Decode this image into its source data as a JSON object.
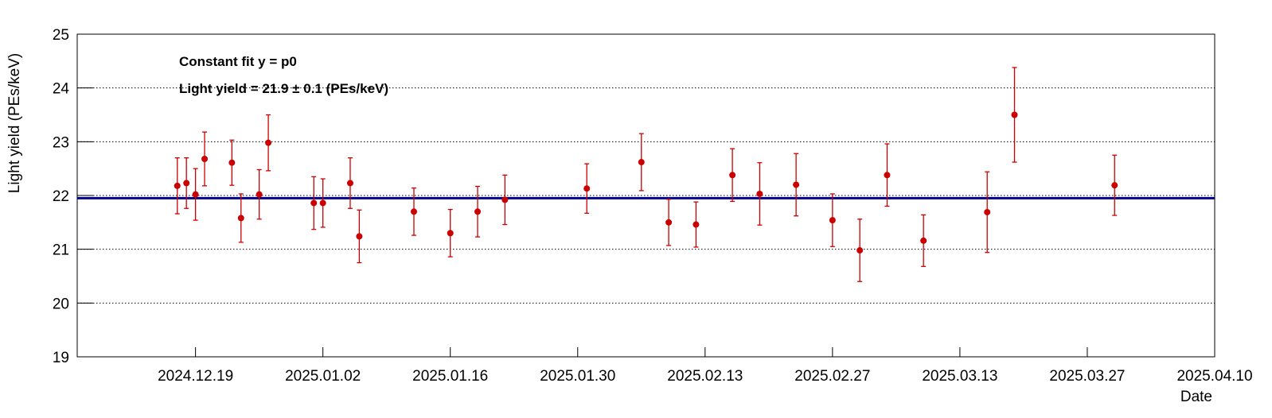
{
  "chart_data": {
    "type": "scatter",
    "annotations": [
      "Constant fit  y = p0",
      "Light yield = 21.9   ± 0.1  (PEs/keV)"
    ],
    "x_label": "Date",
    "y_label": "Light yield (PEs/keV)",
    "xlim": [
      "2024.12.06",
      "2025.04.10"
    ],
    "xticks": [
      "2024.12.19",
      "2025.01.02",
      "2025.01.16",
      "2025.01.30",
      "2025.02.13",
      "2025.02.27",
      "2025.03.13",
      "2025.03.27",
      "2025.04.10"
    ],
    "ylim": [
      19,
      25
    ],
    "yticks": [
      19,
      20,
      21,
      22,
      23,
      24,
      25
    ],
    "grid": true,
    "fit": {
      "value": 21.95,
      "color": "#00008b"
    },
    "series": [
      {
        "color": "#cc0000",
        "x": [
          "2024.12.17",
          "2024.12.18",
          "2024.12.19",
          "2024.12.20",
          "2024.12.23",
          "2024.12.24",
          "2024.12.26",
          "2024.12.27",
          "2025.01.01",
          "2025.01.02",
          "2025.01.05",
          "2025.01.06",
          "2025.01.12",
          "2025.01.16",
          "2025.01.19",
          "2025.01.22",
          "2025.01.31",
          "2025.02.06",
          "2025.02.09",
          "2025.02.12",
          "2025.02.16",
          "2025.02.19",
          "2025.02.23",
          "2025.02.27",
          "2025.03.02",
          "2025.03.05",
          "2025.03.09",
          "2025.03.16",
          "2025.03.19",
          "2025.03.30"
        ],
        "values": [
          22.18,
          22.23,
          22.02,
          22.68,
          22.61,
          21.58,
          22.02,
          22.98,
          21.86,
          21.86,
          22.23,
          21.24,
          21.7,
          21.3,
          21.7,
          21.92,
          22.13,
          22.62,
          21.5,
          21.46,
          22.38,
          22.03,
          22.2,
          21.54,
          20.98,
          22.38,
          21.16,
          21.69,
          23.5,
          22.19
        ],
        "errors": [
          0.52,
          0.47,
          0.48,
          0.5,
          0.42,
          0.45,
          0.46,
          0.52,
          0.49,
          0.45,
          0.47,
          0.49,
          0.44,
          0.44,
          0.47,
          0.46,
          0.46,
          0.53,
          0.43,
          0.42,
          0.49,
          0.58,
          0.58,
          0.49,
          0.58,
          0.58,
          0.48,
          0.75,
          0.88,
          0.56
        ]
      }
    ]
  }
}
